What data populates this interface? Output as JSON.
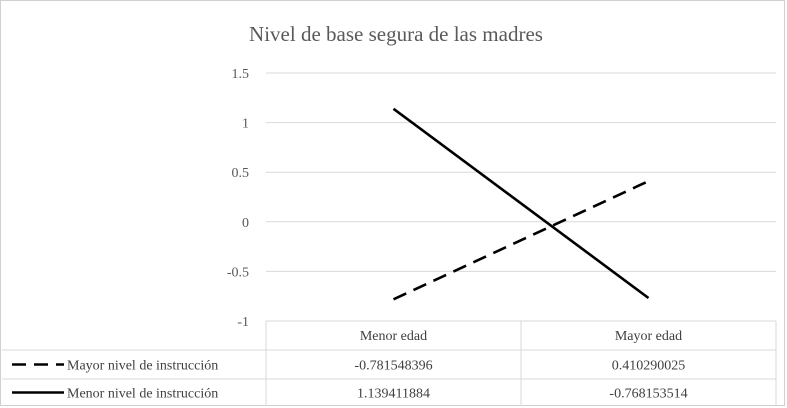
{
  "chart_data": {
    "type": "line",
    "title": "Nivel de base segura de las madres",
    "categories": [
      "Menor edad",
      "Mayor edad"
    ],
    "ylim": [
      -1,
      1.5
    ],
    "yticks": [
      "1.5",
      "1",
      "0.5",
      "0",
      "-0.5",
      "-1"
    ],
    "ytick_values": [
      1.5,
      1,
      0.5,
      0,
      -0.5,
      -1
    ],
    "grid": true,
    "legend": "data-table-left",
    "series": [
      {
        "name": "Mayor nivel de instrucción",
        "values": [
          -0.781548396,
          0.410290025
        ],
        "labels": [
          "-0.781548396",
          "0.410290025"
        ],
        "line_style": "dashed",
        "color": "#000000"
      },
      {
        "name": "Menor nivel de instrucción",
        "values": [
          1.139411884,
          -0.768153514
        ],
        "labels": [
          "1.139411884",
          "-0.768153514"
        ],
        "line_style": "solid",
        "color": "#000000"
      }
    ]
  },
  "colors": {
    "gridline": "#d9d9d9",
    "table_border": "#d9d9d9",
    "text": "#595959"
  }
}
